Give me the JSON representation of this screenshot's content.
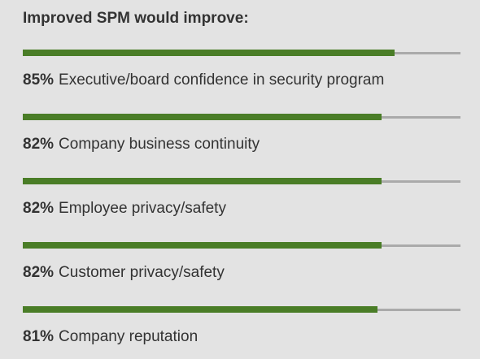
{
  "title": "Improved SPM would improve:",
  "colors": {
    "background": "#e3e3e3",
    "bar_fill": "#4a7d27",
    "bar_track": "#aaaaaa",
    "text": "#333333"
  },
  "chart_data": {
    "type": "bar",
    "orientation": "horizontal",
    "title": "Improved SPM would improve:",
    "xlim": [
      0,
      100
    ],
    "categories": [
      "Executive/board confidence in security program",
      "Company business continuity",
      "Employee privacy/safety",
      "Customer privacy/safety",
      "Company reputation"
    ],
    "values": [
      85,
      82,
      82,
      82,
      81
    ],
    "value_labels": [
      "85%",
      "82%",
      "82%",
      "82%",
      "81%"
    ],
    "grid": false,
    "legend": "none"
  }
}
